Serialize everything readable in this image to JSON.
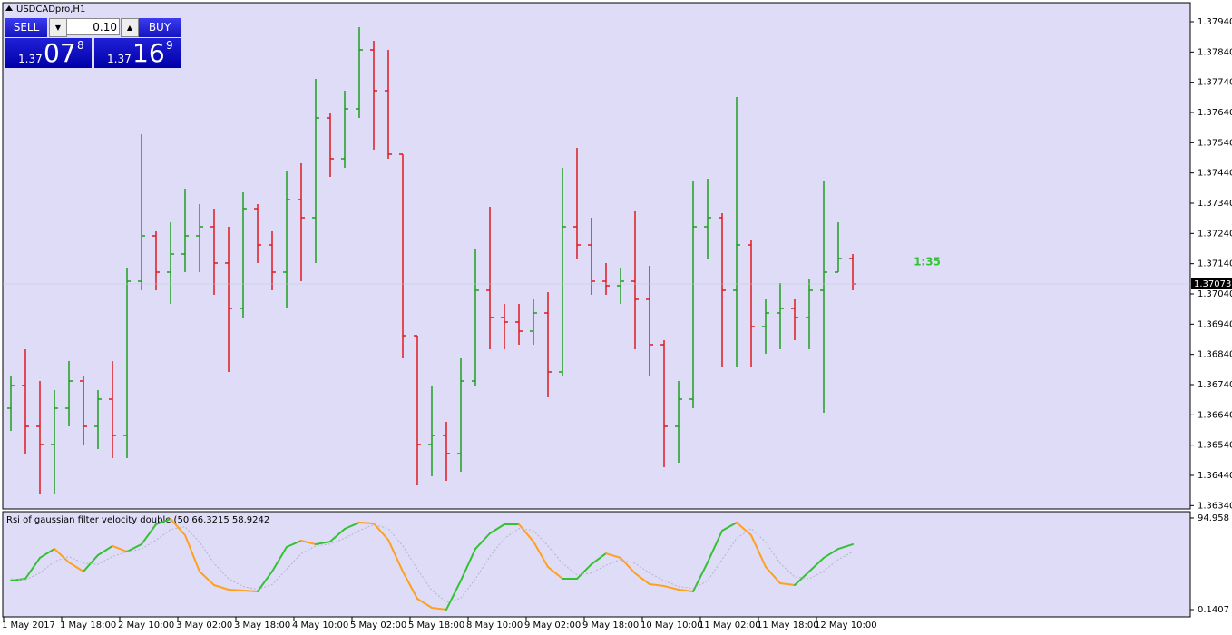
{
  "chart_data": [
    {
      "type": "ohlc",
      "title": "USDCADpro,H1",
      "categories": [
        "1 May 2017",
        null,
        null,
        null,
        "1 May 18:00",
        null,
        null,
        null,
        "2 May 10:00",
        null,
        null,
        null,
        "3 May 02:00",
        null,
        null,
        null,
        "3 May 18:00",
        null,
        null,
        null,
        "4 May 10:00",
        null,
        null,
        null,
        "5 May 02:00",
        null,
        null,
        null,
        "5 May 18:00",
        null,
        null,
        null,
        "8 May 10:00",
        null,
        null,
        null,
        "9 May 02:00",
        null,
        null,
        null,
        "9 May 18:00",
        null,
        null,
        null,
        "10 May 10:00",
        null,
        null,
        null,
        "11 May 02:00",
        null,
        null,
        null,
        "11 May 18:00",
        null,
        null,
        null,
        "12 May 10:00",
        null,
        null
      ],
      "open": [
        1.36662,
        1.36737,
        1.36602,
        1.36542,
        1.36662,
        1.36752,
        1.36602,
        1.36692,
        1.36572,
        1.37082,
        1.37232,
        1.37112,
        1.37172,
        1.37232,
        1.37262,
        1.37142,
        1.36992,
        1.37322,
        1.37202,
        1.37112,
        1.37352,
        1.37292,
        1.37622,
        1.37487,
        1.37652,
        1.37847,
        1.37712,
        1.37502,
        1.36902,
        1.36542,
        1.36572,
        1.36512,
        1.36752,
        1.37052,
        1.36962,
        1.36947,
        1.36917,
        1.36977,
        1.36782,
        1.37262,
        1.37202,
        1.37082,
        1.37067,
        1.37082,
        1.37022,
        1.36872,
        1.36602,
        1.36692,
        1.37262,
        1.37292,
        1.37052,
        1.37202,
        1.36932,
        1.36977,
        1.36992,
        1.36962,
        1.37052,
        1.37112,
        1.37157
      ],
      "high": [
        1.36767,
        1.36857,
        1.36752,
        1.36722,
        1.36818,
        1.36767,
        1.36722,
        1.36818,
        1.37127,
        1.37568,
        1.37247,
        1.37277,
        1.37388,
        1.37337,
        1.37322,
        1.37262,
        1.37376,
        1.37337,
        1.37247,
        1.37448,
        1.37472,
        1.37751,
        1.37637,
        1.37712,
        1.37922,
        1.37877,
        1.37847,
        1.37502,
        1.36902,
        1.36737,
        1.36617,
        1.36827,
        1.37187,
        1.37328,
        1.37007,
        1.37007,
        1.37022,
        1.37046,
        1.37457,
        1.37523,
        1.37292,
        1.37142,
        1.37127,
        1.37313,
        1.37133,
        1.36887,
        1.36752,
        1.37412,
        1.37421,
        1.37307,
        1.37691,
        1.37217,
        1.37022,
        1.37076,
        1.37022,
        1.37088,
        1.37412,
        1.37277,
        1.37172
      ],
      "low": [
        1.36587,
        1.36512,
        1.36377,
        1.36377,
        1.36602,
        1.36542,
        1.36527,
        1.36497,
        1.36497,
        1.37052,
        1.37052,
        1.37007,
        1.37112,
        1.37112,
        1.37037,
        1.36782,
        1.36962,
        1.37142,
        1.37052,
        1.36992,
        1.37082,
        1.37142,
        1.37427,
        1.37457,
        1.37622,
        1.37517,
        1.37487,
        1.36827,
        1.36407,
        1.36437,
        1.36422,
        1.36452,
        1.36737,
        1.36857,
        1.36857,
        1.36872,
        1.36872,
        1.36698,
        1.36767,
        1.37157,
        1.37037,
        1.37037,
        1.37007,
        1.36857,
        1.36767,
        1.36467,
        1.36482,
        1.36662,
        1.37157,
        1.36797,
        1.36797,
        1.36797,
        1.36842,
        1.36857,
        1.36887,
        1.36857,
        1.36647,
        1.37112,
        1.37052
      ],
      "close": [
        1.36737,
        1.36602,
        1.36542,
        1.36662,
        1.36752,
        1.36602,
        1.36692,
        1.36572,
        1.37082,
        1.37232,
        1.37112,
        1.37172,
        1.37232,
        1.37262,
        1.37142,
        1.36992,
        1.37322,
        1.37202,
        1.37112,
        1.37352,
        1.37292,
        1.37622,
        1.37487,
        1.37652,
        1.37847,
        1.37712,
        1.37502,
        1.36902,
        1.36542,
        1.36572,
        1.36512,
        1.36752,
        1.37052,
        1.36962,
        1.36947,
        1.36917,
        1.36977,
        1.36782,
        1.37262,
        1.37202,
        1.37082,
        1.37067,
        1.37082,
        1.37022,
        1.36872,
        1.36602,
        1.36692,
        1.37262,
        1.37292,
        1.37052,
        1.37202,
        1.36932,
        1.36977,
        1.36992,
        1.36962,
        1.37052,
        1.37112,
        1.37157,
        1.37073
      ],
      "up_color": "#1e9e1e",
      "down_color": "#e01a1f",
      "ylim": [
        1.36329,
        1.38003
      ],
      "yticks": [
        {
          "value": 1.3634,
          "label": "1.36340"
        },
        {
          "value": 1.3644,
          "label": "1.36440"
        },
        {
          "value": 1.3654,
          "label": "1.36540"
        },
        {
          "value": 1.3664,
          "label": "1.36640"
        },
        {
          "value": 1.3674,
          "label": "1.36740"
        },
        {
          "value": 1.3684,
          "label": "1.36840"
        },
        {
          "value": 1.3694,
          "label": "1.36940"
        },
        {
          "value": 1.3704,
          "label": "1.37040"
        },
        {
          "value": 1.3714,
          "label": "1.37140"
        },
        {
          "value": 1.3724,
          "label": "1.37240"
        },
        {
          "value": 1.3734,
          "label": "1.37340"
        },
        {
          "value": 1.3744,
          "label": "1.37440"
        },
        {
          "value": 1.3754,
          "label": "1.37540"
        },
        {
          "value": 1.3764,
          "label": "1.37640"
        },
        {
          "value": 1.3774,
          "label": "1.37740"
        },
        {
          "value": 1.3784,
          "label": "1.37840"
        },
        {
          "value": 1.3794,
          "label": "1.37940"
        }
      ],
      "timer": "1:35"
    },
    {
      "type": "line",
      "title": "Rsi of gaussian filter velocity double (50 66.3215 58.9242",
      "ylim": [
        0.1407,
        94.958
      ],
      "yticks": [
        94.958,
        0.1407
      ],
      "series": [
        {
          "up_color": "#35c035",
          "down_color": "#ffa020",
          "values": [
            30.2,
            32.1,
            53.7,
            63.0,
            49.0,
            39.6,
            56.5,
            65.9,
            60.2,
            67.7,
            88.4,
            94.0,
            77.1,
            39.6,
            25.5,
            20.8,
            19.9,
            18.9,
            39.6,
            64.9,
            71.5,
            67.7,
            70.5,
            83.7,
            90.3,
            89.3,
            72.4,
            39.6,
            11.4,
            2.0,
            0.2,
            30.2,
            63.0,
            79.0,
            88.4,
            88.4,
            70.5,
            44.3,
            32.1,
            32.1,
            47.1,
            58.3,
            53.7,
            37.7,
            26.4,
            24.5,
            20.8,
            18.9,
            49.0,
            81.8,
            90.3,
            77.1,
            44.3,
            27.4,
            25.5,
            39.6,
            53.7,
            63.0,
            67.7
          ]
        },
        {
          "color": "#b4b4c8",
          "values": [
            32,
            31,
            38,
            50,
            55,
            48,
            47,
            55,
            60,
            63,
            72,
            83,
            86,
            70,
            48,
            32,
            24,
            21,
            26,
            42,
            58,
            66,
            68,
            74,
            82,
            88,
            84,
            66,
            42,
            20,
            8,
            12,
            32,
            55,
            74,
            84,
            82,
            66,
            48,
            36,
            38,
            46,
            52,
            48,
            38,
            30,
            24,
            22,
            30,
            52,
            74,
            84,
            70,
            48,
            34,
            32,
            40,
            52,
            60
          ]
        }
      ]
    }
  ],
  "trade_panel": {
    "sell": "SELL",
    "buy": "BUY",
    "lot": "0.10",
    "bid": {
      "big": "1.37",
      "pips": "07",
      "point": "8"
    },
    "ask": {
      "big": "1.37",
      "pips": "16",
      "point": "9"
    }
  }
}
